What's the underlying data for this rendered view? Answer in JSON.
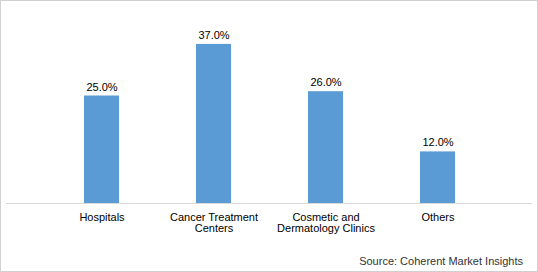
{
  "chart_data": {
    "type": "bar",
    "categories": [
      "Hospitals",
      "Cancer Treatment Centers",
      "Cosmetic and Dermatology Clinics",
      "Others"
    ],
    "values": [
      25,
      37,
      26,
      12
    ],
    "value_labels": [
      "25.0%",
      "37.0%",
      "26.0%",
      "12.0%"
    ],
    "data_labels": true,
    "color": "#5b9bd5",
    "ylim": [
      0,
      40
    ],
    "tick_labels": "x",
    "grid": false,
    "caption": "Source: Coherent Market Insights"
  }
}
